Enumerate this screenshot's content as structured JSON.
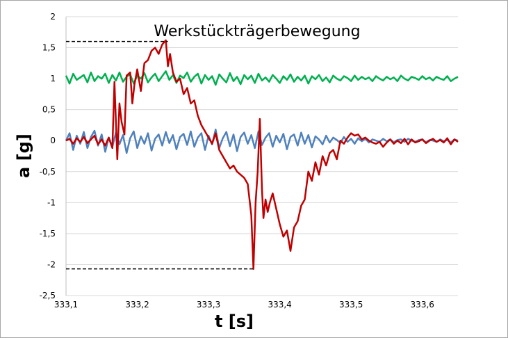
{
  "chart_data": {
    "type": "line",
    "title": "Werkstückträgerbewegung",
    "xlabel": "t [s]",
    "ylabel": "a  [g]",
    "xlim": [
      333.1,
      333.65
    ],
    "ylim": [
      -2.5,
      2
    ],
    "x_ticks": [
      333.1,
      333.2,
      333.3,
      333.4,
      333.5,
      333.6
    ],
    "x_tick_labels": [
      "333,1",
      "333,2",
      "333,3",
      "333,4",
      "333,5",
      "333,6"
    ],
    "y_ticks": [
      2,
      1.5,
      1,
      0.5,
      0,
      -0.5,
      -1,
      -1.5,
      -2,
      -2.5
    ],
    "y_tick_labels": [
      "2",
      "1,5",
      "1",
      "0,5",
      "0",
      "-0,5",
      "-1",
      "-1,5",
      "-2",
      "-2,5"
    ],
    "grid": "horizontal",
    "legend": "none",
    "series": [
      {
        "color": "#00b050",
        "x": [
          333.1,
          333.105,
          333.11,
          333.115,
          333.12,
          333.125,
          333.13,
          333.135,
          333.14,
          333.145,
          333.15,
          333.155,
          333.16,
          333.165,
          333.17,
          333.175,
          333.18,
          333.185,
          333.19,
          333.195,
          333.2,
          333.205,
          333.21,
          333.215,
          333.22,
          333.225,
          333.23,
          333.235,
          333.24,
          333.245,
          333.25,
          333.255,
          333.26,
          333.265,
          333.27,
          333.275,
          333.28,
          333.285,
          333.29,
          333.295,
          333.3,
          333.305,
          333.31,
          333.315,
          333.32,
          333.325,
          333.33,
          333.335,
          333.34,
          333.345,
          333.35,
          333.355,
          333.36,
          333.365,
          333.37,
          333.375,
          333.38,
          333.385,
          333.39,
          333.395,
          333.4,
          333.405,
          333.41,
          333.415,
          333.42,
          333.425,
          333.43,
          333.435,
          333.44,
          333.445,
          333.45,
          333.455,
          333.46,
          333.465,
          333.47,
          333.475,
          333.48,
          333.485,
          333.49,
          333.495,
          333.5,
          333.505,
          333.51,
          333.515,
          333.52,
          333.525,
          333.53,
          333.535,
          333.54,
          333.545,
          333.55,
          333.555,
          333.56,
          333.565,
          333.57,
          333.575,
          333.58,
          333.585,
          333.59,
          333.595,
          333.6,
          333.605,
          333.61,
          333.615,
          333.62,
          333.625,
          333.63,
          333.635,
          333.64,
          333.645,
          333.65
        ],
        "y": [
          1.05,
          0.92,
          1.08,
          0.98,
          1.02,
          1.06,
          0.94,
          1.1,
          0.96,
          1.04,
          1.0,
          1.08,
          0.93,
          1.06,
          0.97,
          1.1,
          0.95,
          1.03,
          1.07,
          0.92,
          1.05,
          1.0,
          1.09,
          0.94,
          1.02,
          1.08,
          0.96,
          1.04,
          1.12,
          0.98,
          1.06,
          0.93,
          1.05,
          1.01,
          1.1,
          0.95,
          1.03,
          1.08,
          0.92,
          1.06,
          0.98,
          1.04,
          0.9,
          1.07,
          1.0,
          0.94,
          1.09,
          0.96,
          1.03,
          0.91,
          1.06,
          0.99,
          1.05,
          0.93,
          1.08,
          0.97,
          1.02,
          0.95,
          1.06,
          1.0,
          0.93,
          1.04,
          0.98,
          1.07,
          0.95,
          1.03,
          0.97,
          1.05,
          0.92,
          1.04,
          0.99,
          1.06,
          0.96,
          1.02,
          0.94,
          1.05,
          1.0,
          0.97,
          1.04,
          1.01,
          0.96,
          1.05,
          0.98,
          1.03,
          0.99,
          1.02,
          0.96,
          1.04,
          1.0,
          0.97,
          1.03,
          0.99,
          1.02,
          0.96,
          1.05,
          1.0,
          0.97,
          1.03,
          1.01,
          0.98,
          1.04,
          0.99,
          1.02,
          0.97,
          1.03,
          1.0,
          0.98,
          1.04,
          0.96,
          1.0,
          1.03
        ]
      },
      {
        "color": "#4f81bd",
        "x": [
          333.1,
          333.105,
          333.11,
          333.115,
          333.12,
          333.125,
          333.13,
          333.135,
          333.14,
          333.145,
          333.15,
          333.155,
          333.16,
          333.165,
          333.17,
          333.175,
          333.18,
          333.185,
          333.19,
          333.195,
          333.2,
          333.205,
          333.21,
          333.215,
          333.22,
          333.225,
          333.23,
          333.235,
          333.24,
          333.245,
          333.25,
          333.255,
          333.26,
          333.265,
          333.27,
          333.275,
          333.28,
          333.285,
          333.29,
          333.295,
          333.3,
          333.305,
          333.31,
          333.315,
          333.32,
          333.325,
          333.33,
          333.335,
          333.34,
          333.345,
          333.35,
          333.355,
          333.36,
          333.365,
          333.37,
          333.375,
          333.38,
          333.385,
          333.39,
          333.395,
          333.4,
          333.405,
          333.41,
          333.415,
          333.42,
          333.425,
          333.43,
          333.435,
          333.44,
          333.445,
          333.45,
          333.455,
          333.46,
          333.465,
          333.47,
          333.475,
          333.48,
          333.485,
          333.49,
          333.495,
          333.5,
          333.505,
          333.51,
          333.515,
          333.52,
          333.525,
          333.53,
          333.535,
          333.54,
          333.545,
          333.55,
          333.555,
          333.56,
          333.565,
          333.57,
          333.575,
          333.58,
          333.585,
          333.59,
          333.595,
          333.6,
          333.605,
          333.61,
          333.615,
          333.62,
          333.625,
          333.63,
          333.635,
          333.64,
          333.645,
          333.65
        ],
        "y": [
          0.0,
          0.12,
          -0.15,
          0.08,
          -0.05,
          0.14,
          -0.12,
          0.06,
          0.16,
          -0.08,
          0.1,
          -0.18,
          0.05,
          -0.1,
          0.13,
          -0.06,
          0.09,
          -0.2,
          0.04,
          0.15,
          -0.12,
          0.07,
          -0.05,
          0.12,
          -0.16,
          0.03,
          0.1,
          -0.08,
          0.14,
          -0.04,
          0.09,
          -0.14,
          0.06,
          0.11,
          -0.07,
          0.15,
          -0.1,
          0.05,
          0.12,
          -0.15,
          0.08,
          -0.06,
          0.18,
          -0.12,
          0.04,
          0.14,
          -0.09,
          0.1,
          -0.17,
          0.06,
          0.13,
          -0.05,
          0.09,
          -0.12,
          0.15,
          -0.07,
          0.05,
          0.12,
          -0.1,
          0.08,
          -0.03,
          0.11,
          -0.14,
          0.06,
          0.1,
          -0.08,
          0.13,
          -0.05,
          0.09,
          -0.11,
          0.07,
          0.02,
          -0.06,
          0.08,
          -0.03,
          0.05,
          0.01,
          -0.04,
          0.06,
          -0.02,
          0.03,
          -0.05,
          0.04,
          -0.01,
          0.03,
          -0.03,
          0.02,
          0.0,
          -0.02,
          0.03,
          -0.01,
          0.02,
          -0.03,
          0.01,
          0.02,
          -0.02,
          0.03,
          0.0,
          -0.02,
          0.01,
          0.02,
          -0.03,
          0.01,
          0.0,
          -0.02,
          0.02,
          -0.01,
          0.01,
          -0.03,
          0.02,
          0.0
        ]
      },
      {
        "color": "#c00000",
        "x": [
          333.1,
          333.105,
          333.11,
          333.115,
          333.12,
          333.125,
          333.13,
          333.135,
          333.14,
          333.145,
          333.15,
          333.155,
          333.16,
          333.165,
          333.168,
          333.172,
          333.175,
          333.178,
          333.182,
          333.185,
          333.19,
          333.193,
          333.196,
          333.2,
          333.205,
          333.21,
          333.215,
          333.22,
          333.225,
          333.23,
          333.235,
          333.24,
          333.243,
          333.246,
          333.25,
          333.255,
          333.26,
          333.265,
          333.27,
          333.275,
          333.28,
          333.285,
          333.29,
          333.295,
          333.3,
          333.305,
          333.31,
          333.315,
          333.32,
          333.325,
          333.33,
          333.335,
          333.34,
          333.345,
          333.35,
          333.355,
          333.36,
          333.363,
          333.366,
          333.369,
          333.372,
          333.375,
          333.377,
          333.38,
          333.383,
          333.386,
          333.39,
          333.395,
          333.4,
          333.405,
          333.41,
          333.415,
          333.42,
          333.425,
          333.43,
          333.435,
          333.44,
          333.445,
          333.45,
          333.455,
          333.46,
          333.465,
          333.47,
          333.475,
          333.48,
          333.485,
          333.49,
          333.495,
          333.5,
          333.505,
          333.51,
          333.515,
          333.52,
          333.525,
          333.53,
          333.535,
          333.54,
          333.545,
          333.55,
          333.555,
          333.56,
          333.565,
          333.57,
          333.575,
          333.58,
          333.585,
          333.59,
          333.595,
          333.6,
          333.605,
          333.61,
          333.615,
          333.62,
          333.625,
          333.63,
          333.635,
          333.64,
          333.645,
          333.65
        ],
        "y": [
          0.0,
          0.03,
          -0.05,
          0.04,
          -0.02,
          0.06,
          -0.04,
          0.02,
          0.08,
          -0.06,
          0.02,
          -0.08,
          0.05,
          -0.12,
          0.95,
          -0.3,
          0.6,
          0.3,
          0.1,
          1.05,
          1.1,
          0.6,
          0.9,
          1.15,
          0.8,
          1.25,
          1.3,
          1.45,
          1.5,
          1.4,
          1.55,
          1.62,
          1.2,
          1.4,
          1.1,
          0.95,
          1.0,
          0.75,
          0.85,
          0.6,
          0.65,
          0.4,
          0.25,
          0.15,
          0.05,
          -0.05,
          0.12,
          -0.15,
          -0.25,
          -0.35,
          -0.45,
          -0.4,
          -0.5,
          -0.55,
          -0.6,
          -0.7,
          -1.2,
          -2.07,
          -1.0,
          -0.5,
          0.35,
          -0.8,
          -1.25,
          -0.95,
          -1.15,
          -1.0,
          -0.85,
          -1.1,
          -1.35,
          -1.55,
          -1.45,
          -1.78,
          -1.4,
          -1.3,
          -1.05,
          -0.95,
          -0.5,
          -0.65,
          -0.35,
          -0.55,
          -0.25,
          -0.4,
          -0.2,
          -0.15,
          -0.3,
          0.0,
          -0.05,
          0.05,
          0.12,
          0.08,
          0.1,
          0.02,
          0.05,
          0.0,
          -0.03,
          -0.05,
          -0.02,
          -0.1,
          -0.03,
          0.02,
          -0.05,
          0.0,
          -0.04,
          0.03,
          -0.06,
          0.02,
          -0.03,
          -0.01,
          0.02,
          -0.04,
          0.0,
          0.03,
          -0.02,
          0.01,
          -0.03,
          0.04,
          -0.06,
          0.02,
          -0.02
        ]
      }
    ],
    "annotations": [
      {
        "type": "dashed-reference-line",
        "y": 1.6,
        "x_from": 333.1,
        "x_to": 333.243,
        "color": "#000000"
      },
      {
        "type": "dashed-reference-line",
        "y": -2.07,
        "x_from": 333.1,
        "x_to": 333.363,
        "color": "#000000"
      }
    ]
  }
}
